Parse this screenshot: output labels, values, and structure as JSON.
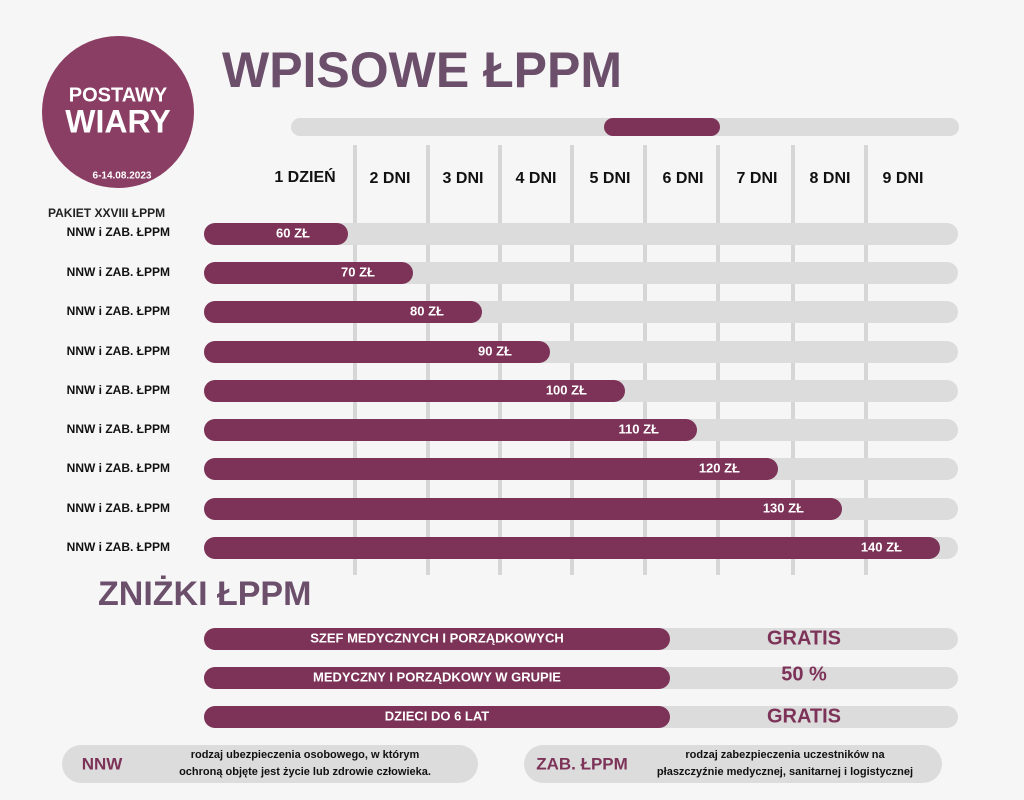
{
  "logo": {
    "line1": "POSTAWY",
    "line2": "WIARY",
    "dates": "6-14.08.2023"
  },
  "header": {
    "title": "WPISOWE ŁPPM"
  },
  "columns": [
    "1 DZIEŃ",
    "2 DNI",
    "3 DNI",
    "4 DNI",
    "5 DNI",
    "6 DNI",
    "7 DNI",
    "8 DNI",
    "9 DNI"
  ],
  "package_label": "PAKIET XXVIII ŁPPM",
  "rows": [
    {
      "label": "NNW i ZAB. ŁPPM",
      "price": "60 ZŁ"
    },
    {
      "label": "NNW i ZAB. ŁPPM",
      "price": "70 ZŁ"
    },
    {
      "label": "NNW i ZAB. ŁPPM",
      "price": "80 ZŁ"
    },
    {
      "label": "NNW i ZAB. ŁPPM",
      "price": "90 ZŁ"
    },
    {
      "label": "NNW i ZAB. ŁPPM",
      "price": "100 ZŁ"
    },
    {
      "label": "NNW i ZAB. ŁPPM",
      "price": "110 ZŁ"
    },
    {
      "label": "NNW i ZAB. ŁPPM",
      "price": "120 ZŁ"
    },
    {
      "label": "NNW i ZAB. ŁPPM",
      "price": "130 ZŁ"
    },
    {
      "label": "NNW i ZAB. ŁPPM",
      "price": "140 ZŁ"
    }
  ],
  "discounts": {
    "title": "ZNIŻKI ŁPPM",
    "items": [
      {
        "label": "SZEF MEDYCZNYCH I PORZĄDKOWYCH",
        "value": "GRATIS"
      },
      {
        "label": "MEDYCZNY I PORZĄDKOWY W GRUPIE",
        "value": "50 %"
      },
      {
        "label": "DZIECI DO 6 LAT",
        "value": "GRATIS"
      }
    ]
  },
  "legend": [
    {
      "term": "NNW",
      "lines": [
        "rodzaj ubezpieczenia osobowego, w którym",
        "ochroną objęte jest życie lub zdrowie człowieka."
      ]
    },
    {
      "term": "ZAB. ŁPPM",
      "lines": [
        "rodzaj zabezpieczenia uczestników na",
        "płaszczyźnie medycznej, sanitarnej i logistycznej"
      ]
    }
  ]
}
